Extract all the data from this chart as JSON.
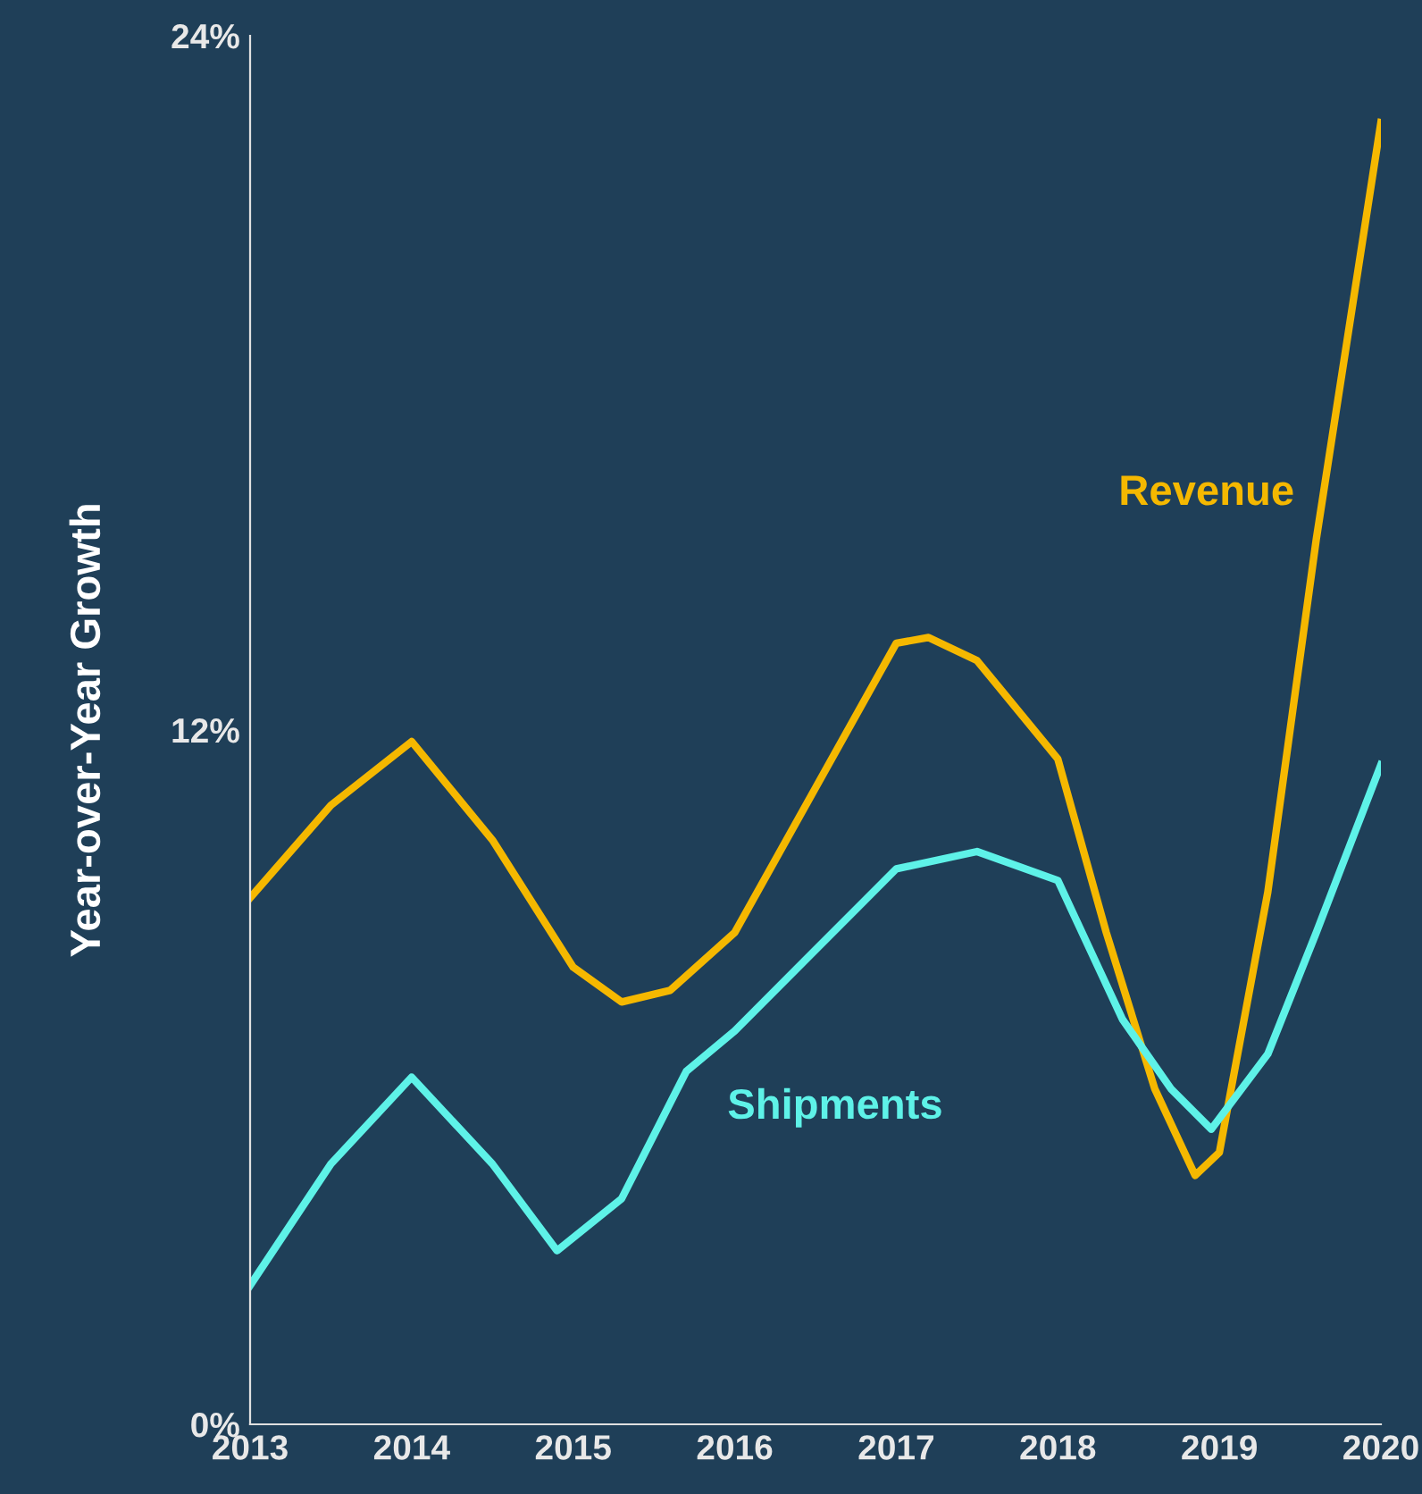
{
  "chart_data": {
    "type": "line",
    "ylabel": "Year-over-Year Growth",
    "xlim": [
      2013,
      2020
    ],
    "xticks": [
      2013,
      2014,
      2015,
      2016,
      2017,
      2018,
      2019,
      2020
    ],
    "ylim": [
      0,
      24
    ],
    "yticks": [
      {
        "value": 0,
        "label": "0%"
      },
      {
        "value": 12,
        "label": "12%"
      },
      {
        "value": 24,
        "label": "24%"
      }
    ],
    "grid": false,
    "legend": false,
    "marker": "none",
    "line_style": "solid",
    "series": [
      {
        "name": "Revenue",
        "color": "#f5b800",
        "x": [
          2013,
          2013.5,
          2014,
          2014.5,
          2015,
          2015.3,
          2015.6,
          2016,
          2016.5,
          2017,
          2017.2,
          2017.5,
          2018,
          2018.3,
          2018.6,
          2018.85,
          2019,
          2019.3,
          2019.6,
          2020
        ],
        "values": [
          9.1,
          10.7,
          11.8,
          10.1,
          7.9,
          7.3,
          7.5,
          8.5,
          11.0,
          13.5,
          13.6,
          13.2,
          11.5,
          8.5,
          5.8,
          4.3,
          4.7,
          9.2,
          15.3,
          22.5
        ]
      },
      {
        "name": "Shipments",
        "color": "#5ef2e8",
        "x": [
          2013,
          2013.5,
          2014,
          2014.5,
          2014.9,
          2015.3,
          2015.7,
          2016,
          2016.5,
          2017,
          2017.5,
          2018,
          2018.4,
          2018.7,
          2018.95,
          2019.3,
          2019.6,
          2020
        ],
        "values": [
          2.4,
          4.5,
          6.0,
          4.5,
          3.0,
          3.9,
          6.1,
          6.8,
          8.2,
          9.6,
          9.9,
          9.4,
          7.0,
          5.8,
          5.1,
          6.4,
          8.5,
          11.4
        ]
      }
    ]
  }
}
